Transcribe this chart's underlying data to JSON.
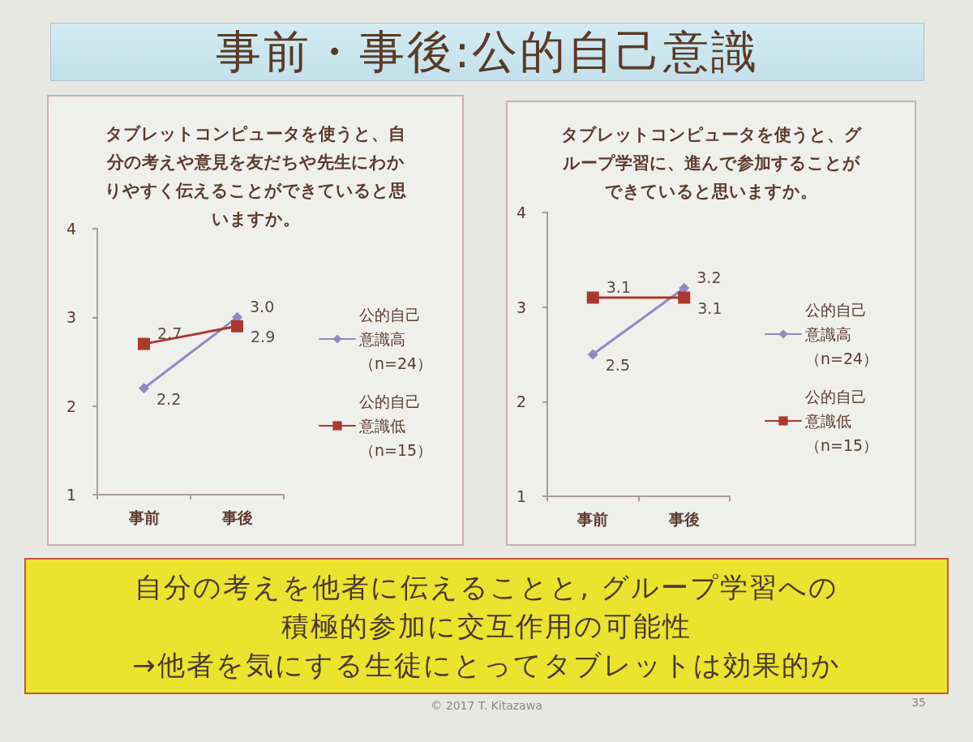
{
  "chart_data": [
    {
      "type": "other",
      "title": "事前・事後:公的自己意識"
    },
    {
      "type": "line",
      "title": "タブレットコンピュータを使うと、自分の考えや意見を友だちや先生にわかりやすく伝えることができていると思いますか。",
      "categories": [
        "事前",
        "事後"
      ],
      "series": [
        {
          "name": "公的自己意識高（n=24）",
          "color": "#9189c2",
          "marker": "diamond",
          "values": [
            2.2,
            3.0
          ],
          "value_labels": [
            "2.2",
            "3.0"
          ]
        },
        {
          "name": "公的自己意識低（n=15）",
          "color": "#a9392f",
          "marker": "square",
          "values": [
            2.7,
            2.9
          ],
          "value_labels": [
            "2.7",
            "2.9"
          ]
        }
      ],
      "ylim": [
        1,
        4
      ],
      "yticks": [
        1,
        2,
        3,
        4
      ],
      "grid": false,
      "legend": "right"
    },
    {
      "type": "line",
      "title": "タブレットコンピュータを使うと、グループ学習に、進んで参加することができていると思いますか。",
      "categories": [
        "事前",
        "事後"
      ],
      "series": [
        {
          "name": "公的自己意識高（n=24）",
          "color": "#9189c2",
          "marker": "diamond",
          "values": [
            2.5,
            3.2
          ],
          "value_labels": [
            "2.5",
            "3.2"
          ]
        },
        {
          "name": "公的自己意識低（n=15）",
          "color": "#a9392f",
          "marker": "square",
          "values": [
            3.1,
            3.1
          ],
          "value_labels": [
            "3.1",
            "3.1"
          ]
        }
      ],
      "ylim": [
        1,
        4
      ],
      "yticks": [
        1,
        2,
        3,
        4
      ],
      "grid": false,
      "legend": "right"
    },
    {
      "type": "other",
      "annotations": [
        "自分の考えを他者に伝えることと, グループ学習への",
        "積極的参加に交互作用の可能性",
        "→他者を気にする生徒にとってタブレットは効果的か"
      ]
    },
    {
      "type": "other",
      "annotations": [
        "© 2017 T. Kitazawa",
        "35"
      ]
    }
  ]
}
